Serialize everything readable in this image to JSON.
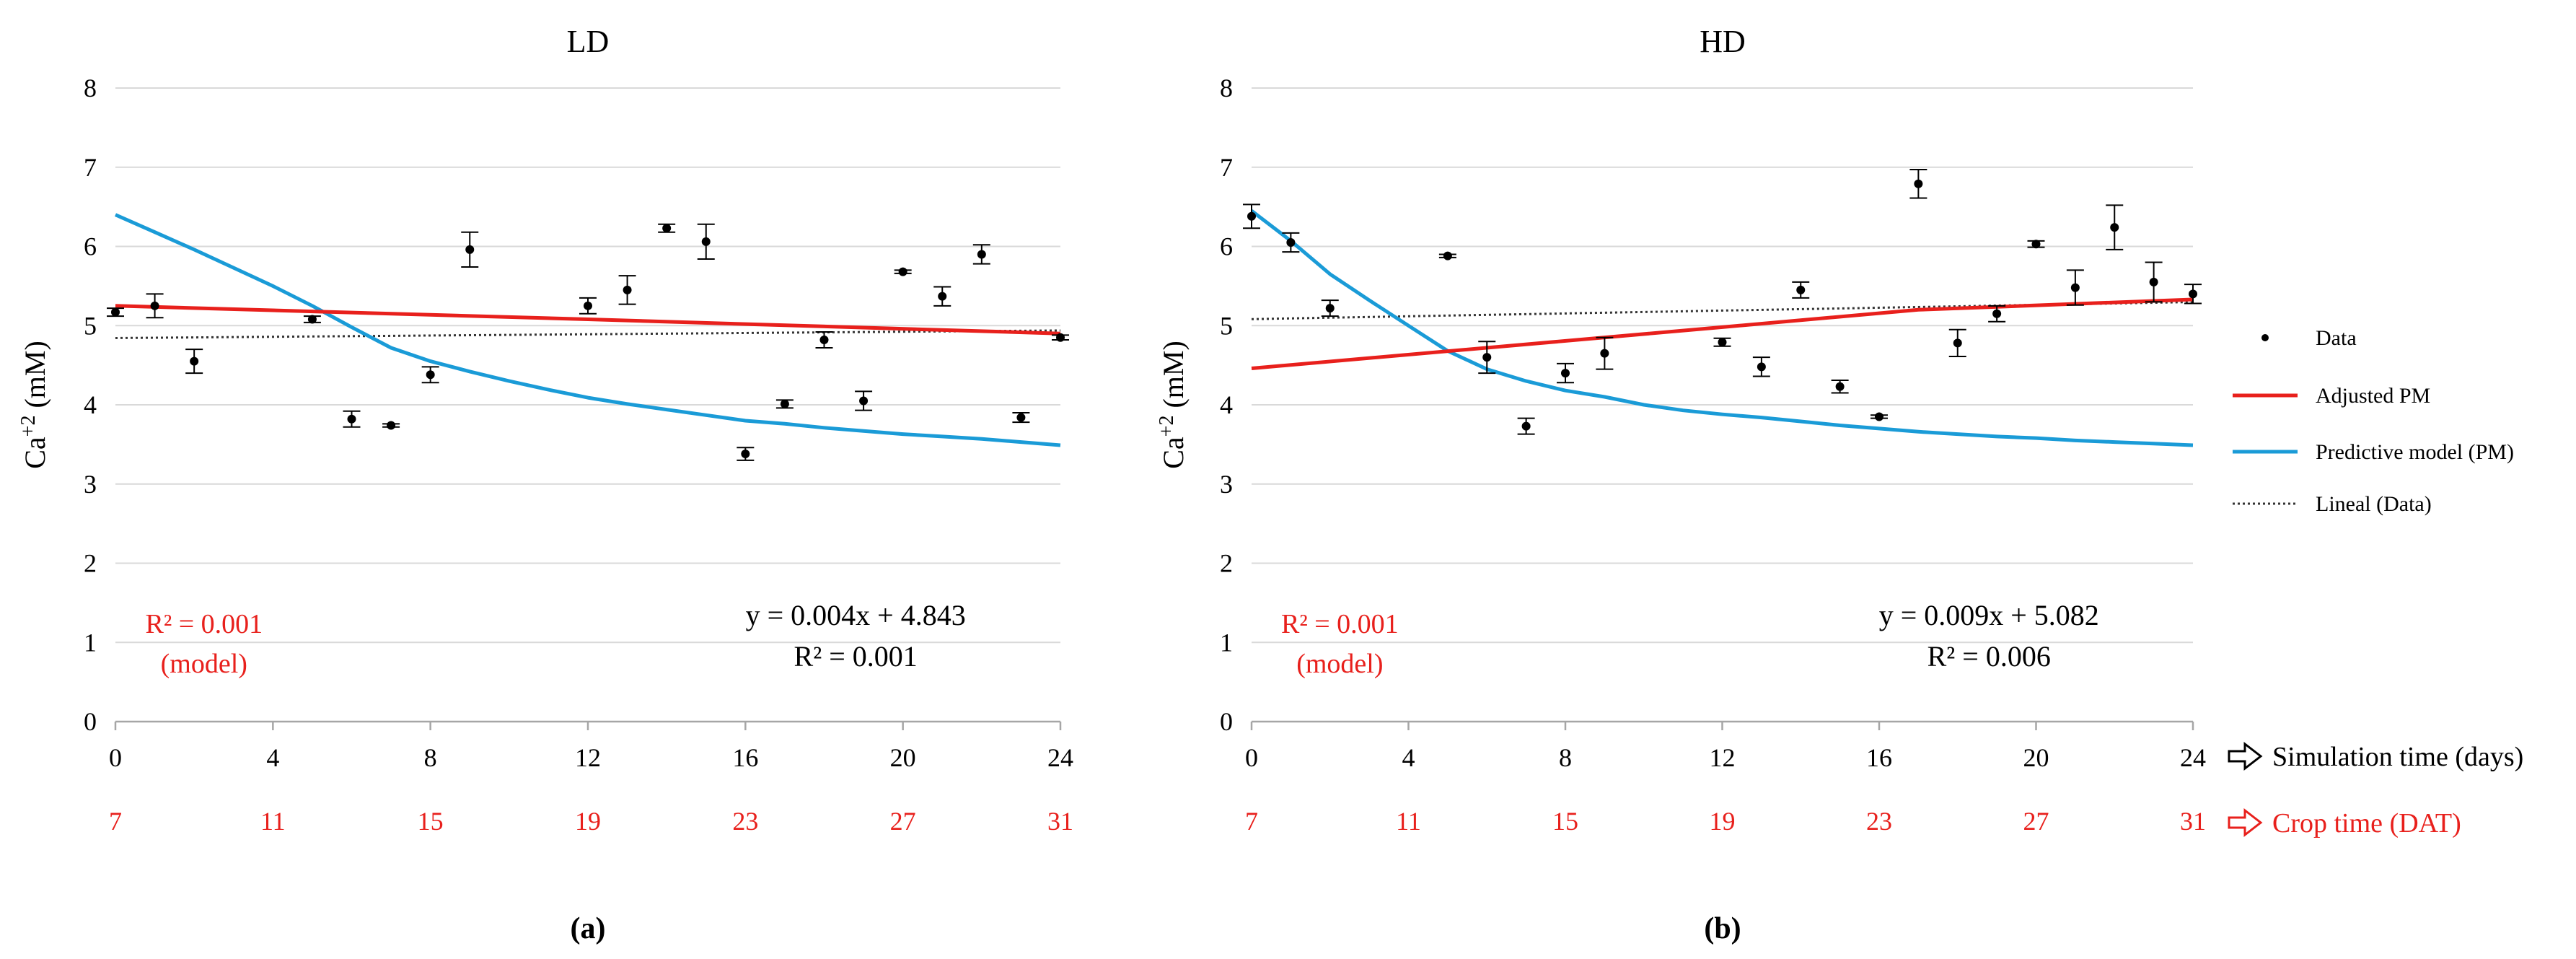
{
  "chart_data": [
    {
      "type": "line",
      "panel_label": "(a)",
      "title": "LD",
      "ylabel": "Ca+2 (mM)",
      "ylabel_main": "Ca",
      "ylabel_sup": "+2",
      "ylabel_unit": " (mM)",
      "xlim": [
        0,
        24
      ],
      "ylim": [
        0,
        8
      ],
      "x_ticks": [
        "0",
        "4",
        "8",
        "12",
        "16",
        "20",
        "24"
      ],
      "y_ticks": [
        "0",
        "1",
        "2",
        "3",
        "4",
        "5",
        "6",
        "7",
        "8"
      ],
      "crop_ticks": [
        "7",
        "11",
        "15",
        "19",
        "23",
        "27",
        "31"
      ],
      "grid": true,
      "data_points": {
        "x": [
          0,
          1,
          2,
          5,
          6,
          7,
          8,
          9,
          12,
          13,
          14,
          15,
          16,
          17,
          18,
          19,
          20,
          21,
          22,
          23,
          24
        ],
        "y": [
          5.17,
          5.25,
          4.55,
          5.08,
          3.82,
          3.74,
          4.38,
          5.96,
          5.25,
          5.45,
          6.23,
          6.06,
          3.38,
          4.01,
          4.82,
          4.05,
          5.68,
          5.37,
          5.9,
          3.84,
          4.85
        ],
        "err": [
          0.05,
          0.15,
          0.15,
          0.04,
          0.1,
          0.02,
          0.1,
          0.22,
          0.1,
          0.18,
          0.05,
          0.22,
          0.08,
          0.05,
          0.1,
          0.12,
          0.02,
          0.12,
          0.12,
          0.06,
          0.03
        ]
      },
      "adjusted_pm": {
        "x": [
          0,
          12,
          16,
          24
        ],
        "y": [
          5.25,
          5.08,
          5.02,
          4.9
        ]
      },
      "predictive_model": {
        "x": [
          0,
          1,
          2,
          3,
          4,
          5,
          6,
          7,
          8,
          9,
          10,
          11,
          12,
          13,
          14,
          15,
          16,
          17,
          18,
          19,
          20,
          21,
          22,
          23,
          24
        ],
        "y": [
          6.4,
          6.18,
          5.96,
          5.73,
          5.5,
          5.25,
          4.98,
          4.72,
          4.55,
          4.42,
          4.3,
          4.19,
          4.09,
          4.01,
          3.94,
          3.87,
          3.8,
          3.76,
          3.71,
          3.67,
          3.63,
          3.6,
          3.57,
          3.53,
          3.49
        ]
      },
      "lineal": {
        "slope": 0.004,
        "intercept": 4.843
      },
      "eq_text": "y = 0.004x + 4.843",
      "r2_text": "R² = 0.001",
      "model_r2_text": "R² = 0.001",
      "model_label": "(model)"
    },
    {
      "type": "line",
      "panel_label": "(b)",
      "title": "HD",
      "ylabel": "Ca+2 (mM)",
      "ylabel_main": "Ca",
      "ylabel_sup": "+2",
      "ylabel_unit": " (mM)",
      "xlim": [
        0,
        24
      ],
      "ylim": [
        0,
        8
      ],
      "x_ticks": [
        "0",
        "4",
        "8",
        "12",
        "16",
        "20",
        "24"
      ],
      "y_ticks": [
        "0",
        "1",
        "2",
        "3",
        "4",
        "5",
        "6",
        "7",
        "8"
      ],
      "crop_ticks": [
        "7",
        "11",
        "15",
        "19",
        "23",
        "27",
        "31"
      ],
      "grid": true,
      "data_points": {
        "x": [
          0,
          1,
          2,
          5,
          6,
          7,
          8,
          9,
          12,
          13,
          14,
          15,
          16,
          17,
          18,
          19,
          20,
          21,
          22,
          23,
          24
        ],
        "y": [
          6.38,
          6.05,
          5.22,
          5.88,
          4.6,
          3.73,
          4.4,
          4.65,
          4.79,
          4.48,
          5.45,
          4.23,
          3.85,
          6.79,
          4.78,
          5.15,
          6.03,
          5.48,
          6.24,
          5.55,
          5.4
        ],
        "err": [
          0.15,
          0.12,
          0.1,
          0.02,
          0.2,
          0.1,
          0.12,
          0.2,
          0.05,
          0.12,
          0.1,
          0.08,
          0.02,
          0.18,
          0.17,
          0.1,
          0.04,
          0.22,
          0.28,
          0.25,
          0.12
        ]
      },
      "adjusted_pm": {
        "x": [
          0,
          12,
          17,
          24
        ],
        "y": [
          4.46,
          4.98,
          5.2,
          5.33
        ]
      },
      "predictive_model": {
        "x": [
          0,
          1,
          2,
          3,
          4,
          5,
          6,
          7,
          8,
          9,
          10,
          11,
          12,
          13,
          14,
          15,
          16,
          17,
          18,
          19,
          20,
          21,
          22,
          23,
          24
        ],
        "y": [
          6.45,
          6.07,
          5.65,
          5.32,
          5.0,
          4.68,
          4.45,
          4.3,
          4.18,
          4.1,
          4.0,
          3.93,
          3.88,
          3.84,
          3.79,
          3.74,
          3.7,
          3.66,
          3.63,
          3.6,
          3.58,
          3.55,
          3.53,
          3.51,
          3.49
        ]
      },
      "lineal": {
        "slope": 0.009,
        "intercept": 5.082
      },
      "eq_text": "y = 0.009x + 5.082",
      "r2_text": "R² = 0.006",
      "model_r2_text": "R² = 0.001",
      "model_label": "(model)"
    }
  ],
  "legend": [
    {
      "label": "Data",
      "style": "dot"
    },
    {
      "label": "Adjusted PM",
      "style": "line",
      "color": "#e8201c"
    },
    {
      "label": "Predictive model (PM)",
      "style": "line",
      "color": "#1a9bd7"
    },
    {
      "label": "Lineal (Data)",
      "style": "dotted",
      "color": "#333333"
    }
  ],
  "axis_notes": {
    "simulation_label": "Simulation time (days)",
    "crop_label": "Crop time (DAT)"
  },
  "colors": {
    "adjusted": "#e8201c",
    "predictive": "#1a9bd7",
    "grid": "#d9d9d9",
    "axis": "#a6a6a6",
    "crop": "#e8201c"
  }
}
